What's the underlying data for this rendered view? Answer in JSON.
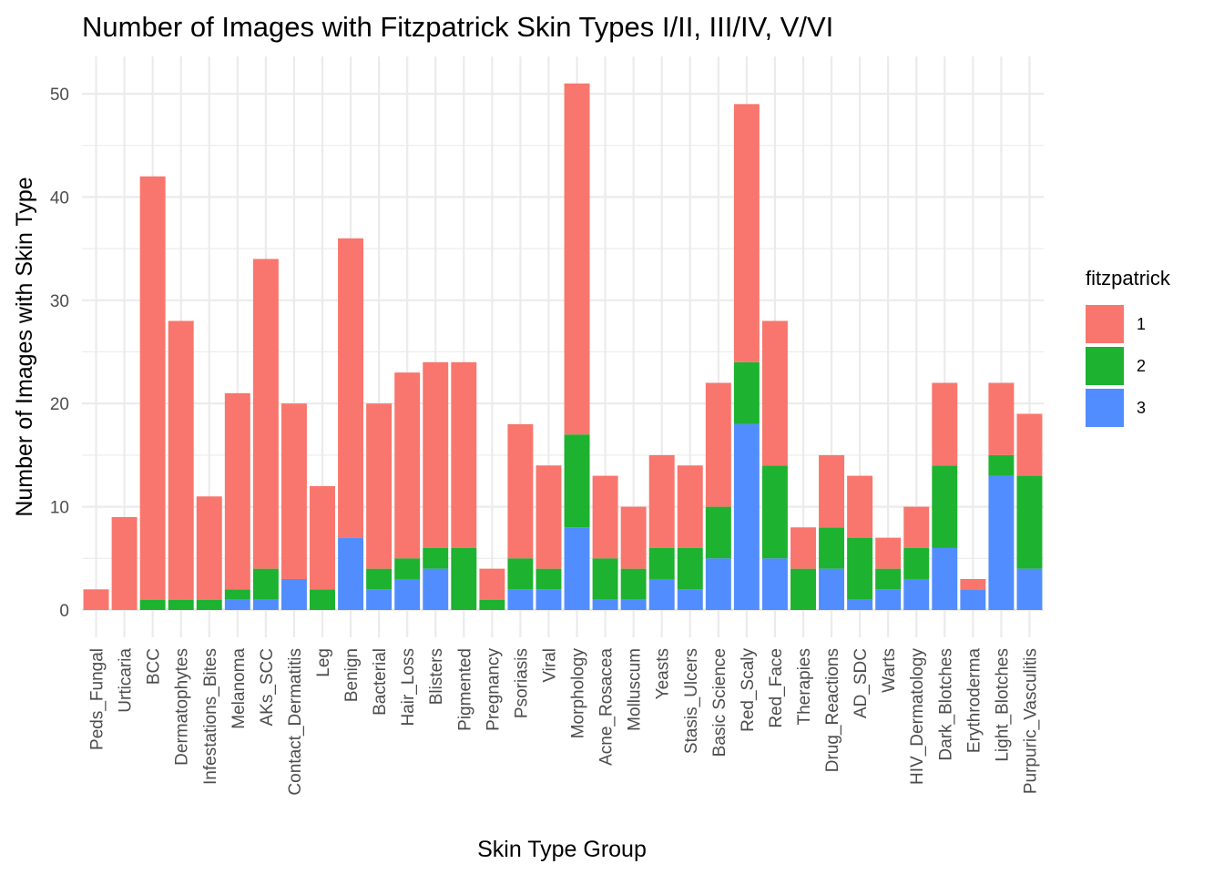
{
  "chart_data": {
    "type": "bar",
    "stacked": true,
    "title": "Number of Images with Fitzpatrick Skin Types I/II, III/IV, V/VI",
    "xlabel": "Skin Type Group",
    "ylabel": "Number of Images with Skin Type",
    "ylim": [
      0,
      53
    ],
    "yticks": [
      0,
      10,
      20,
      30,
      40,
      50
    ],
    "grid": true,
    "legend": {
      "title": "fitzpatrick",
      "position": "right"
    },
    "categories": [
      "Peds_Fungal",
      "Urticaria",
      "BCC",
      "Dermatophytes",
      "Infestations_Bites",
      "Melanoma",
      "AKs_SCC",
      "Contact_Dermatitis",
      "Leg",
      "Benign",
      "Bacterial",
      "Hair_Loss",
      "Blisters",
      "Pigmented",
      "Pregnancy",
      "Psoriasis",
      "Viral",
      "Morphology",
      "Acne_Rosacea",
      "Molluscum",
      "Yeasts",
      "Stasis_Ulcers",
      "Basic Science",
      "Red_Scaly",
      "Red_Face",
      "Therapies",
      "Drug_Reactions",
      "AD_SDC",
      "Warts",
      "HIV_Dermatology",
      "Dark_Blotches",
      "Erythroderma",
      "Light_Blotches",
      "Purpuric_Vasculitis"
    ],
    "series": [
      {
        "name": "1",
        "color": "#F8766D",
        "values": [
          2,
          9,
          41,
          27,
          10,
          19,
          30,
          17,
          10,
          29,
          16,
          18,
          18,
          18,
          3,
          13,
          10,
          34,
          8,
          6,
          9,
          8,
          12,
          25,
          14,
          4,
          7,
          6,
          3,
          4,
          8,
          1,
          7,
          6
        ]
      },
      {
        "name": "2",
        "color": "#1DB22F",
        "values": [
          0,
          0,
          1,
          1,
          1,
          1,
          3,
          0,
          2,
          0,
          2,
          2,
          2,
          6,
          1,
          3,
          2,
          9,
          4,
          3,
          3,
          4,
          5,
          6,
          9,
          4,
          4,
          6,
          2,
          3,
          8,
          0,
          2,
          9
        ]
      },
      {
        "name": "3",
        "color": "#528DFF",
        "values": [
          0,
          0,
          0,
          0,
          0,
          1,
          1,
          3,
          0,
          7,
          2,
          3,
          4,
          0,
          0,
          2,
          2,
          8,
          1,
          1,
          3,
          2,
          5,
          18,
          5,
          0,
          4,
          1,
          2,
          3,
          6,
          2,
          13,
          4
        ]
      }
    ]
  }
}
